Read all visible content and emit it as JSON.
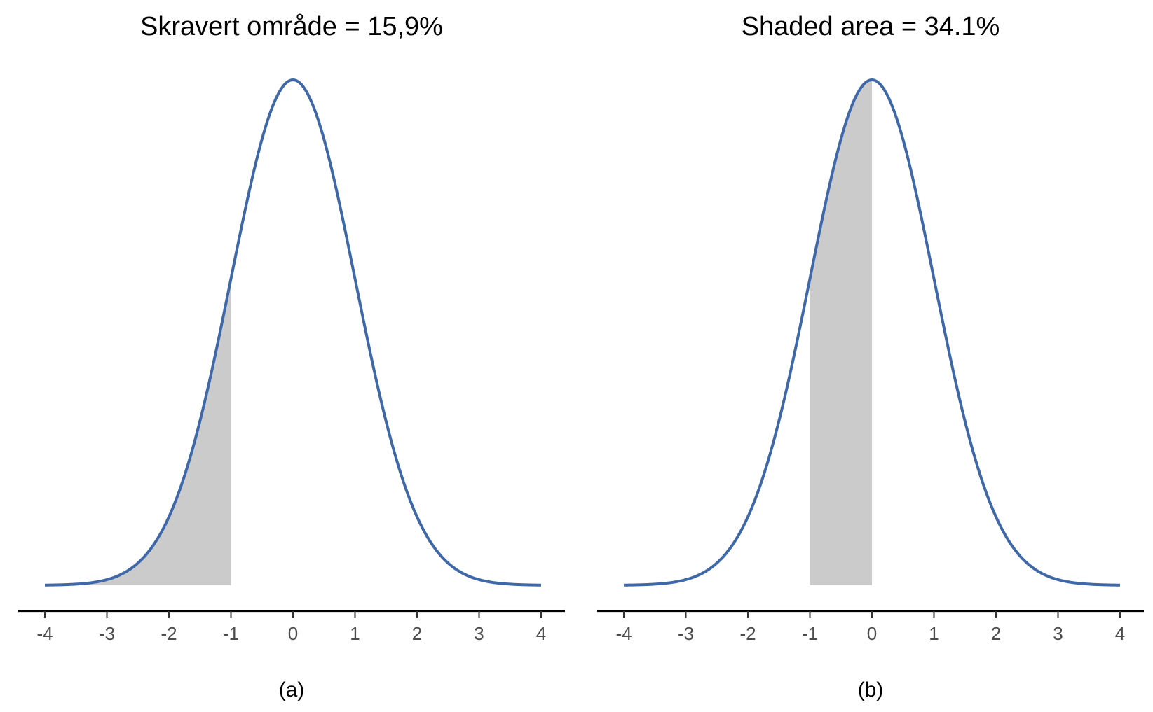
{
  "chart_data": [
    {
      "type": "area",
      "title": "Skravert område = 15,9%",
      "caption": "(a)",
      "distribution": "standard normal",
      "xlim": [
        -4,
        4
      ],
      "x_ticks": [
        -4,
        -3,
        -2,
        -1,
        0,
        1,
        2,
        3,
        4
      ],
      "x_tick_labels": [
        "-4",
        "-3",
        "-2",
        "-1",
        "0",
        "1",
        "2",
        "3",
        "4"
      ],
      "shaded_interval": [
        -4,
        -1
      ],
      "shaded_area_percent": 15.9,
      "curve_color": "#3f68a8",
      "shade_color": "#cbcbcb",
      "grid": false,
      "legend": "none"
    },
    {
      "type": "area",
      "title": "Shaded area = 34.1%",
      "caption": "(b)",
      "distribution": "standard normal",
      "xlim": [
        -4,
        4
      ],
      "x_ticks": [
        -4,
        -3,
        -2,
        -1,
        0,
        1,
        2,
        3,
        4
      ],
      "x_tick_labels": [
        "-4",
        "-3",
        "-2",
        "-1",
        "0",
        "1",
        "2",
        "3",
        "4"
      ],
      "shaded_interval": [
        -1,
        0
      ],
      "shaded_area_percent": 34.1,
      "curve_color": "#3f68a8",
      "shade_color": "#cbcbcb",
      "grid": false,
      "legend": "none"
    }
  ]
}
